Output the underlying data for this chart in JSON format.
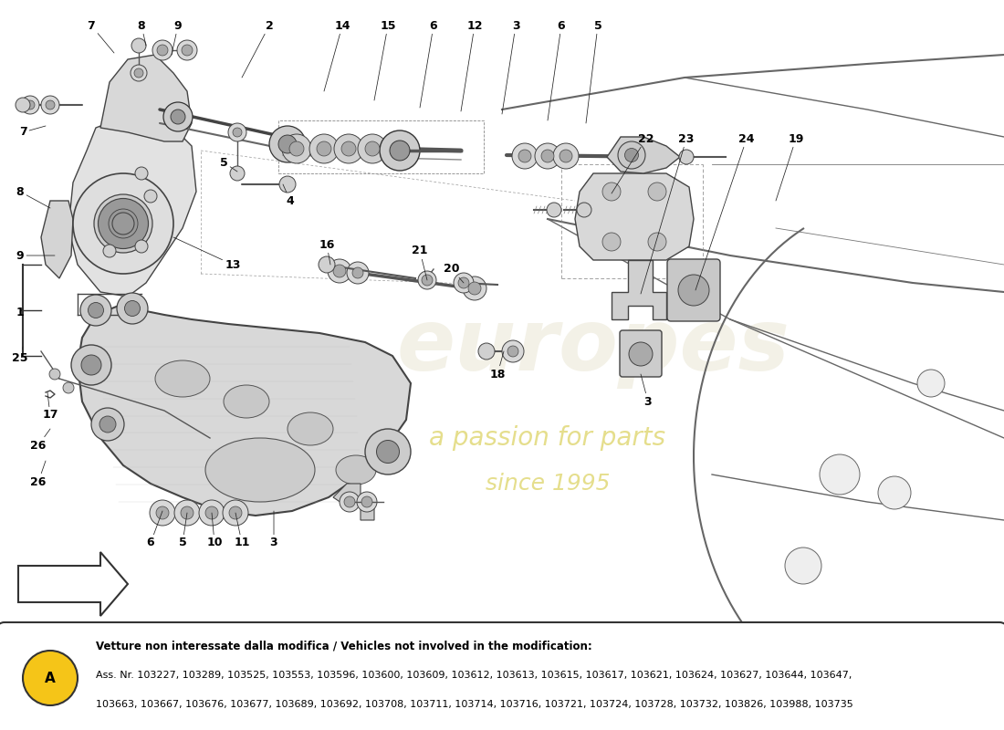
{
  "bg_color": "#ffffff",
  "line_color": "#333333",
  "note_title": "Vetture non interessate dalla modifica / Vehicles not involved in the modification:",
  "note_line1": "Ass. Nr. 103227, 103289, 103525, 103553, 103596, 103600, 103609, 103612, 103613, 103615, 103617, 103621, 103624, 103627, 103644, 103647,",
  "note_line2": "103663, 103667, 103676, 103677, 103689, 103692, 103708, 103711, 103714, 103716, 103721, 103724, 103728, 103732, 103826, 103988, 103735",
  "watermark_text": "europes",
  "watermark_sub1": "a passion for parts",
  "watermark_sub2": "since 1995",
  "watermark_color": "#e8e4d0",
  "watermark_sub_color": "#d4c840",
  "circle_A_color": "#f5c518",
  "figsize": [
    11.0,
    8.0
  ],
  "dpi": 100,
  "label_fontsize": 9,
  "note_fontsize": 8
}
